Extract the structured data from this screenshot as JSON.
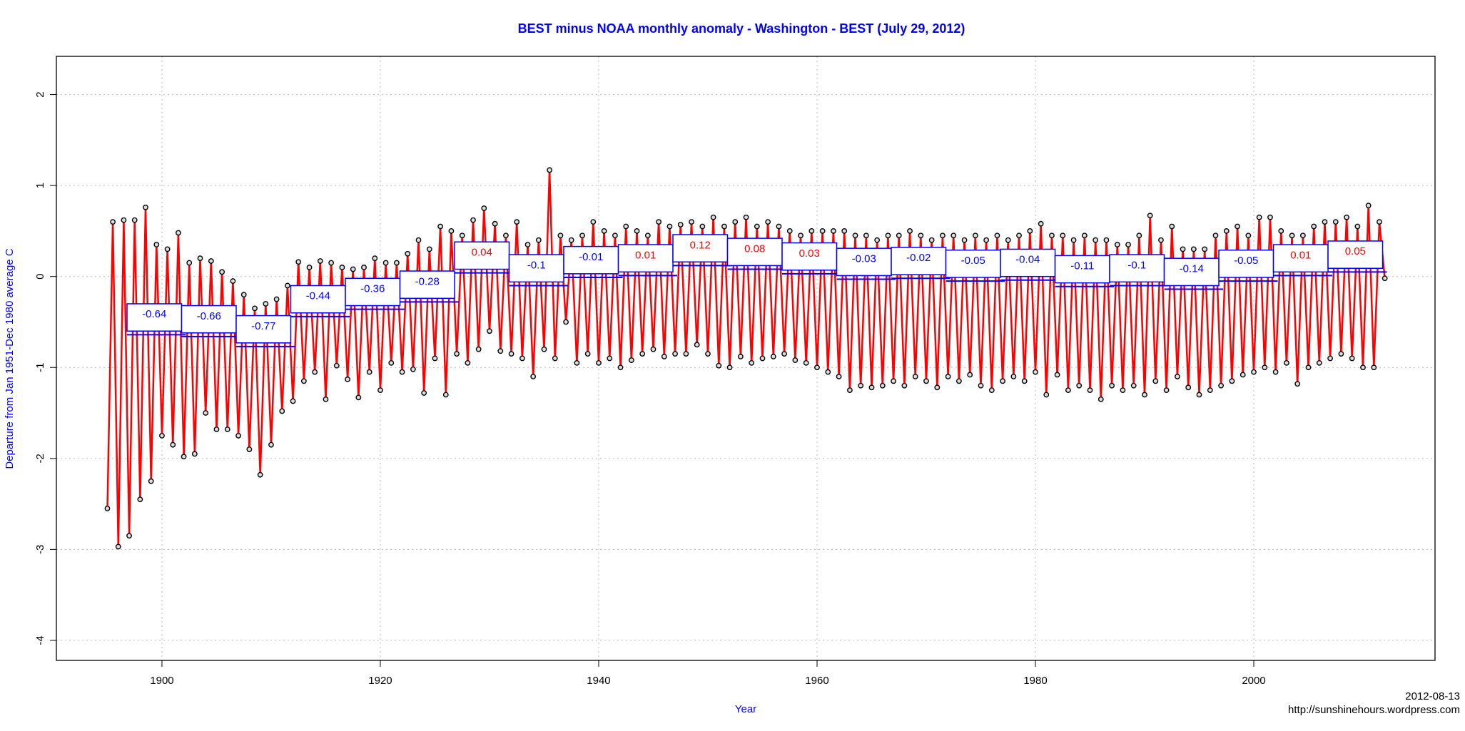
{
  "chart_data": {
    "type": "line",
    "title": "BEST minus NOAA monthly anomaly - Washington - BEST (July 29, 2012)",
    "xlabel": "Year",
    "ylabel": "Departure from Jan 1951-Dec 1980 average C",
    "annotations": [
      "2012-08-13",
      "http://sunshinehours.wordpress.com"
    ],
    "color": "#ff0000",
    "x": [
      1895,
      1895.5,
      1896,
      1896.5,
      1897,
      1897.5,
      1898,
      1898.5,
      1899,
      1899.5,
      1900,
      1900.5,
      1901,
      1901.5,
      1902,
      1902.5,
      1903,
      1903.5,
      1904,
      1904.5,
      1905,
      1905.5,
      1906,
      1906.5,
      1907,
      1907.5,
      1908,
      1908.5,
      1909,
      1909.5,
      1910,
      1910.5,
      1911,
      1911.5,
      1912,
      1912.5,
      1913,
      1913.5,
      1914,
      1914.5,
      1915,
      1915.5,
      1916,
      1916.5,
      1917,
      1917.5,
      1918,
      1918.5,
      1919,
      1919.5,
      1920,
      1920.5,
      1921,
      1921.5,
      1922,
      1922.5,
      1923,
      1923.5,
      1924,
      1924.5,
      1925,
      1925.5,
      1926,
      1926.5,
      1927,
      1927.5,
      1928,
      1928.5,
      1929,
      1929.5,
      1930,
      1930.5,
      1931,
      1931.5,
      1932,
      1932.5,
      1933,
      1933.5,
      1934,
      1934.5,
      1935,
      1935.5,
      1936,
      1936.5,
      1937,
      1937.5,
      1938,
      1938.5,
      1939,
      1939.5,
      1940,
      1940.5,
      1941,
      1941.5,
      1942,
      1942.5,
      1943,
      1943.5,
      1944,
      1944.5,
      1945,
      1945.5,
      1946,
      1946.5,
      1947,
      1947.5,
      1948,
      1948.5,
      1949,
      1949.5,
      1950,
      1950.5,
      1951,
      1951.5,
      1952,
      1952.5,
      1953,
      1953.5,
      1954,
      1954.5,
      1955,
      1955.5,
      1956,
      1956.5,
      1957,
      1957.5,
      1958,
      1958.5,
      1959,
      1959.5,
      1960,
      1960.5,
      1961,
      1961.5,
      1962,
      1962.5,
      1963,
      1963.5,
      1964,
      1964.5,
      1965,
      1965.5,
      1966,
      1966.5,
      1967,
      1967.5,
      1968,
      1968.5,
      1969,
      1969.5,
      1970,
      1970.5,
      1971,
      1971.5,
      1972,
      1972.5,
      1973,
      1973.5,
      1974,
      1974.5,
      1975,
      1975.5,
      1976,
      1976.5,
      1977,
      1977.5,
      1978,
      1978.5,
      1979,
      1979.5,
      1980,
      1980.5,
      1981,
      1981.5,
      1982,
      1982.5,
      1983,
      1983.5,
      1984,
      1984.5,
      1985,
      1985.5,
      1986,
      1986.5,
      1987,
      1987.5,
      1988,
      1988.5,
      1989,
      1989.5,
      1990,
      1990.5,
      1991,
      1991.5,
      1992,
      1992.5,
      1993,
      1993.5,
      1994,
      1994.5,
      1995,
      1995.5,
      1996,
      1996.5,
      1997,
      1997.5,
      1998,
      1998.5,
      1999,
      1999.5,
      2000,
      2000.5,
      2001,
      2001.5,
      2002,
      2002.5,
      2003,
      2003.5,
      2004,
      2004.5,
      2005,
      2005.5,
      2006,
      2006.5,
      2007,
      2007.5,
      2008,
      2008.5,
      2009,
      2009.5,
      2010,
      2010.5,
      2011,
      2011.5,
      2012
    ],
    "values": [
      -2.55,
      0.6,
      -2.97,
      0.62,
      -2.85,
      0.62,
      -2.45,
      0.76,
      -2.25,
      0.35,
      -1.75,
      0.3,
      -1.85,
      0.48,
      -1.98,
      0.15,
      -1.95,
      0.2,
      -1.5,
      0.17,
      -1.68,
      0.05,
      -1.68,
      -0.05,
      -1.75,
      -0.2,
      -1.9,
      -0.35,
      -2.18,
      -0.3,
      -1.85,
      -0.25,
      -1.48,
      -0.1,
      -1.37,
      0.16,
      -1.15,
      0.1,
      -1.05,
      0.17,
      -1.35,
      0.15,
      -0.98,
      0.1,
      -1.13,
      0.08,
      -1.33,
      0.1,
      -1.05,
      0.2,
      -1.25,
      0.15,
      -0.95,
      0.15,
      -1.05,
      0.25,
      -1.02,
      0.4,
      -1.28,
      0.3,
      -0.9,
      0.55,
      -1.3,
      0.5,
      -0.85,
      0.45,
      -0.95,
      0.62,
      -0.8,
      0.75,
      -0.6,
      0.58,
      -0.82,
      0.45,
      -0.85,
      0.6,
      -0.9,
      0.35,
      -1.1,
      0.4,
      -0.8,
      1.17,
      -0.9,
      0.45,
      -0.5,
      0.4,
      -0.95,
      0.45,
      -0.85,
      0.6,
      -0.95,
      0.5,
      -0.9,
      0.45,
      -1.0,
      0.55,
      -0.92,
      0.5,
      -0.85,
      0.45,
      -0.8,
      0.6,
      -0.88,
      0.55,
      -0.85,
      0.57,
      -0.85,
      0.6,
      -0.75,
      0.55,
      -0.85,
      0.65,
      -0.98,
      0.55,
      -1.0,
      0.6,
      -0.88,
      0.65,
      -0.95,
      0.55,
      -0.9,
      0.6,
      -0.88,
      0.55,
      -0.85,
      0.5,
      -0.92,
      0.45,
      -0.95,
      0.5,
      -1.0,
      0.5,
      -1.05,
      0.5,
      -1.1,
      0.5,
      -1.25,
      0.45,
      -1.2,
      0.45,
      -1.22,
      0.4,
      -1.2,
      0.45,
      -1.15,
      0.45,
      -1.2,
      0.5,
      -1.1,
      0.45,
      -1.15,
      0.4,
      -1.22,
      0.45,
      -1.1,
      0.45,
      -1.15,
      0.4,
      -1.08,
      0.45,
      -1.2,
      0.4,
      -1.25,
      0.45,
      -1.15,
      0.4,
      -1.1,
      0.45,
      -1.15,
      0.5,
      -1.05,
      0.58,
      -1.3,
      0.45,
      -1.08,
      0.45,
      -1.25,
      0.4,
      -1.2,
      0.45,
      -1.25,
      0.4,
      -1.35,
      0.4,
      -1.2,
      0.35,
      -1.25,
      0.35,
      -1.2,
      0.45,
      -1.3,
      0.67,
      -1.15,
      0.4,
      -1.25,
      0.55,
      -1.1,
      0.3,
      -1.22,
      0.3,
      -1.3,
      0.3,
      -1.25,
      0.45,
      -1.2,
      0.5,
      -1.15,
      0.55,
      -1.08,
      0.45,
      -1.05,
      0.65,
      -1.0,
      0.65,
      -1.05,
      0.5,
      -0.95,
      0.45,
      -1.18,
      0.45,
      -1.0,
      0.55,
      -0.95,
      0.6,
      -0.9,
      0.6,
      -0.85,
      0.65,
      -0.9,
      0.55,
      -1.0,
      0.78,
      -1.0,
      0.6,
      -0.02
    ],
    "segments": [
      {
        "start": 1896.8,
        "end": 1901.8,
        "value": -0.64
      },
      {
        "start": 1901.8,
        "end": 1906.8,
        "value": -0.66
      },
      {
        "start": 1906.8,
        "end": 1911.8,
        "value": -0.77
      },
      {
        "start": 1911.8,
        "end": 1916.8,
        "value": -0.44
      },
      {
        "start": 1916.8,
        "end": 1921.8,
        "value": -0.36
      },
      {
        "start": 1921.8,
        "end": 1926.8,
        "value": -0.28
      },
      {
        "start": 1926.8,
        "end": 1931.8,
        "value": 0.04
      },
      {
        "start": 1931.8,
        "end": 1936.8,
        "value": -0.1
      },
      {
        "start": 1936.8,
        "end": 1941.8,
        "value": -0.01
      },
      {
        "start": 1941.8,
        "end": 1946.8,
        "value": 0.01
      },
      {
        "start": 1946.8,
        "end": 1951.8,
        "value": 0.12
      },
      {
        "start": 1951.8,
        "end": 1956.8,
        "value": 0.08
      },
      {
        "start": 1956.8,
        "end": 1961.8,
        "value": 0.03
      },
      {
        "start": 1961.8,
        "end": 1966.8,
        "value": -0.03
      },
      {
        "start": 1966.8,
        "end": 1971.8,
        "value": -0.02
      },
      {
        "start": 1971.8,
        "end": 1976.8,
        "value": -0.05
      },
      {
        "start": 1976.8,
        "end": 1981.8,
        "value": -0.04
      },
      {
        "start": 1981.8,
        "end": 1986.8,
        "value": -0.11
      },
      {
        "start": 1986.8,
        "end": 1991.8,
        "value": -0.1
      },
      {
        "start": 1991.8,
        "end": 1996.8,
        "value": -0.14
      },
      {
        "start": 1996.8,
        "end": 2001.8,
        "value": -0.05
      },
      {
        "start": 2001.8,
        "end": 2006.8,
        "value": 0.01
      },
      {
        "start": 2006.8,
        "end": 2011.8,
        "value": 0.05
      }
    ],
    "segment_color": "#0000ff",
    "xlim": [
      1890.33,
      2016.6
    ],
    "xticks": [
      1900,
      1920,
      1940,
      1960,
      1980,
      2000
    ],
    "ylim": [
      -4.22,
      2.42
    ],
    "yticks": [
      -4,
      -3,
      -2,
      -1,
      0,
      1,
      2
    ],
    "grid": true
  }
}
